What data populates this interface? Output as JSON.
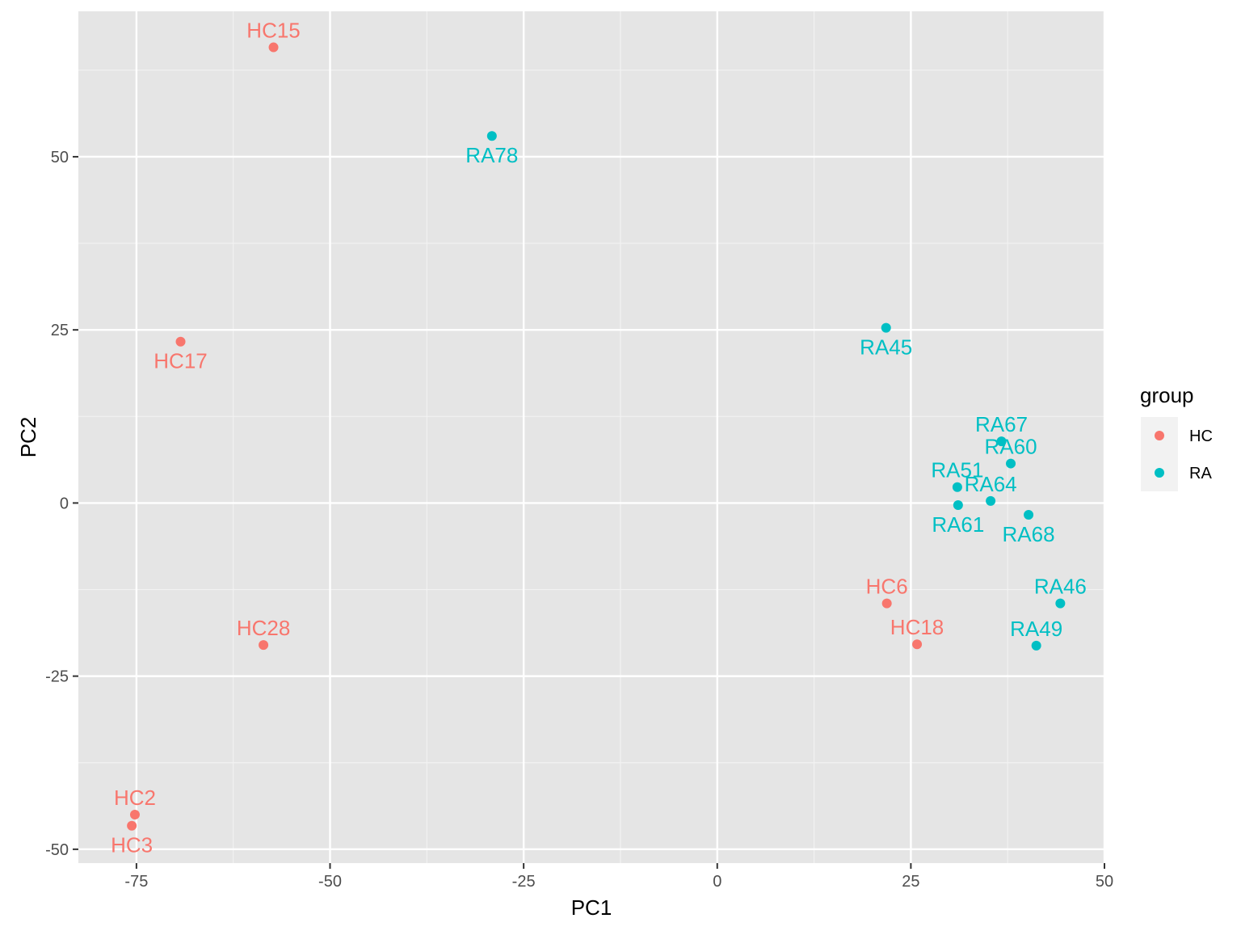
{
  "chart_data": {
    "type": "scatter",
    "xlabel": "PC1",
    "ylabel": "PC2",
    "xlim": [
      -82.5,
      50
    ],
    "ylim": [
      -52,
      71
    ],
    "x_ticks": [
      -75,
      -50,
      -25,
      0,
      25,
      50
    ],
    "x_tick_labels": [
      "-75",
      "-50",
      "-25",
      "0",
      "25",
      "50"
    ],
    "y_ticks": [
      -50,
      -25,
      0,
      25,
      50
    ],
    "y_tick_labels": [
      "-50",
      "-25",
      "0",
      "25",
      "50"
    ],
    "grid": true,
    "legend": {
      "title": "group",
      "position": "right",
      "entries": [
        {
          "label": "HC",
          "color": "#F8766D"
        },
        {
          "label": "RA",
          "color": "#00BFC4"
        }
      ]
    },
    "series": [
      {
        "name": "HC",
        "color": "#F8766D",
        "points": [
          {
            "label": "HC15",
            "x": -57.3,
            "y": 65.8,
            "label_pos": "above"
          },
          {
            "label": "HC17",
            "x": -69.3,
            "y": 23.3,
            "label_pos": "below"
          },
          {
            "label": "HC28",
            "x": -58.6,
            "y": -20.5,
            "label_pos": "above"
          },
          {
            "label": "HC2",
            "x": -75.2,
            "y": -45.0,
            "label_pos": "above"
          },
          {
            "label": "HC3",
            "x": -75.6,
            "y": -46.6,
            "label_pos": "below"
          },
          {
            "label": "HC6",
            "x": 21.9,
            "y": -14.5,
            "label_pos": "above"
          },
          {
            "label": "HC18",
            "x": 25.8,
            "y": -20.4,
            "label_pos": "above"
          }
        ]
      },
      {
        "name": "RA",
        "color": "#00BFC4",
        "points": [
          {
            "label": "RA78",
            "x": -29.1,
            "y": 53.0,
            "label_pos": "below"
          },
          {
            "label": "RA45",
            "x": 21.8,
            "y": 25.3,
            "label_pos": "below"
          },
          {
            "label": "RA67",
            "x": 36.7,
            "y": 8.9,
            "label_pos": "above"
          },
          {
            "label": "RA60",
            "x": 37.9,
            "y": 5.7,
            "label_pos": "above"
          },
          {
            "label": "RA51",
            "x": 31.0,
            "y": 2.3,
            "label_pos": "above"
          },
          {
            "label": "RA64",
            "x": 35.3,
            "y": 0.3,
            "label_pos": "above"
          },
          {
            "label": "RA61",
            "x": 31.1,
            "y": -0.3,
            "label_pos": "below"
          },
          {
            "label": "RA68",
            "x": 40.2,
            "y": -1.7,
            "label_pos": "below"
          },
          {
            "label": "RA46",
            "x": 44.3,
            "y": -14.5,
            "label_pos": "above"
          },
          {
            "label": "RA49",
            "x": 41.2,
            "y": -20.6,
            "label_pos": "above"
          }
        ]
      }
    ]
  }
}
